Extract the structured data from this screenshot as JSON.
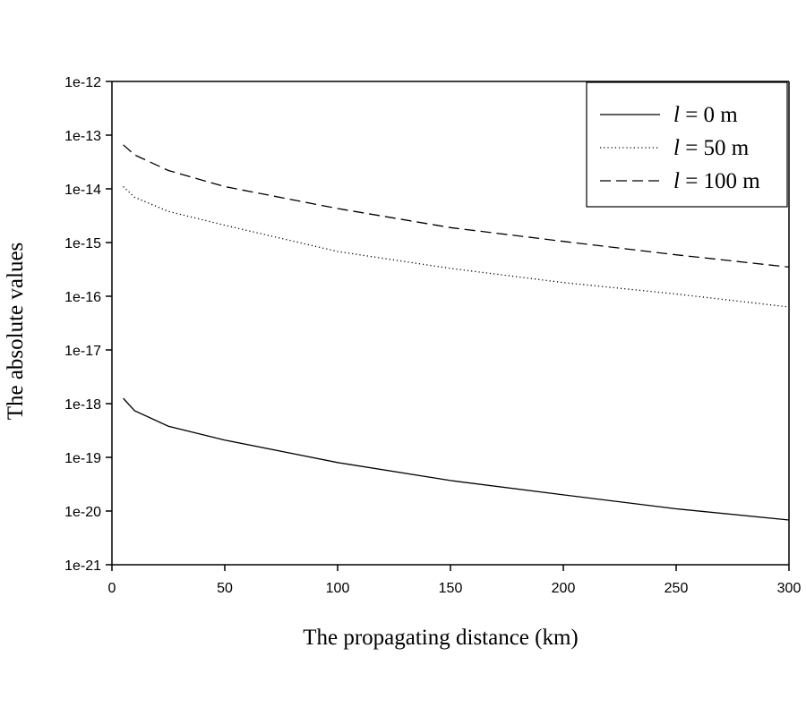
{
  "chart_data": {
    "type": "line",
    "title": "",
    "xlabel": "The propagating distance (km)",
    "ylabel": "The absolute values",
    "xlim": [
      0,
      300
    ],
    "ylim": [
      1e-21,
      1e-12
    ],
    "yscale": "log",
    "xticks": [
      0,
      50,
      100,
      150,
      200,
      250,
      300
    ],
    "xtick_labels": [
      "0",
      "50",
      "100",
      "150",
      "200",
      "250",
      "300"
    ],
    "yticks": [
      1e-12,
      1e-13,
      1e-14,
      1e-15,
      1e-16,
      1e-17,
      1e-18,
      1e-19,
      1e-20,
      1e-21
    ],
    "ytick_labels": [
      "1e-12",
      "1e-13",
      "1e-14",
      "1e-15",
      "1e-16",
      "1e-17",
      "1e-18",
      "1e-19",
      "1e-20",
      "1e-21"
    ],
    "grid": false,
    "legend_position": "top-right",
    "x": [
      5,
      10,
      25,
      50,
      100,
      150,
      200,
      250,
      300
    ],
    "series": [
      {
        "name_prefix": "l",
        "name_suffix": " = 0 m",
        "style": "solid",
        "color": "#000000",
        "values": [
          1.26e-18,
          7.4e-19,
          3.8e-19,
          2.1e-19,
          8e-20,
          3.7e-20,
          2e-20,
          1.1e-20,
          6.8e-21
        ]
      },
      {
        "name_prefix": "l",
        "name_suffix": " = 50 m",
        "style": "dotted",
        "color": "#000000",
        "values": [
          1.1e-14,
          7e-15,
          3.8e-15,
          2.1e-15,
          6.8e-16,
          3.3e-16,
          1.8e-16,
          1.1e-16,
          6.3e-17
        ]
      },
      {
        "name_prefix": "l",
        "name_suffix": " = 100 m",
        "style": "dashed",
        "color": "#000000",
        "values": [
          6.6e-14,
          4.3e-14,
          2.2e-14,
          1.1e-14,
          4.3e-15,
          1.9e-15,
          1.05e-15,
          5.9e-16,
          3.5e-16
        ]
      }
    ]
  }
}
